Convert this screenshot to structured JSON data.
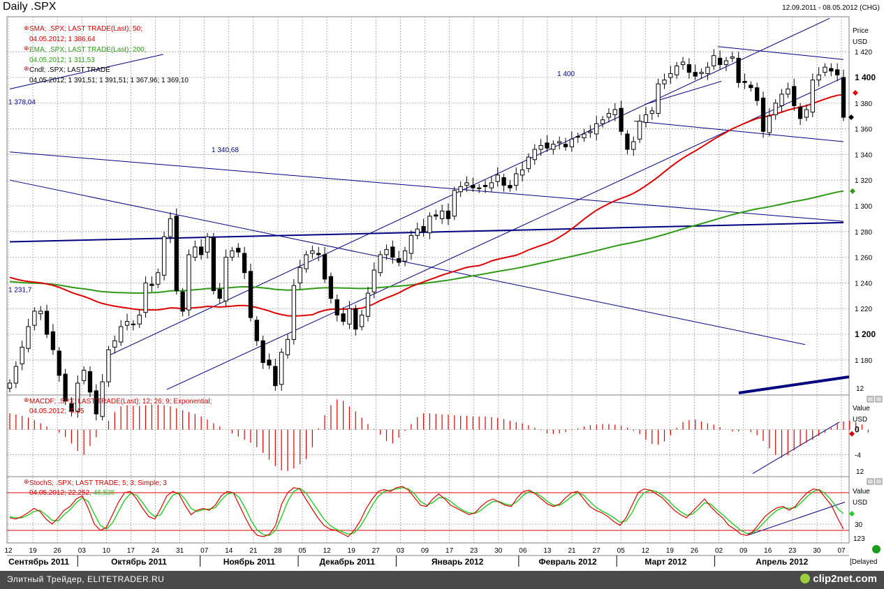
{
  "header": {
    "title": "Daily .SPX",
    "date_range": "12.09.2011 - 08.05.2012 (CHG)"
  },
  "footer": {
    "left_text": "Элитный Трейдер, ELITETRADER.RU",
    "brand": "clip2net.com",
    "delayed": "[Delayed"
  },
  "colors": {
    "grid": "#a0a0a0",
    "sma": "#dd0000",
    "ema": "#2e9a15",
    "candle": "#000000",
    "trendline": "#000080",
    "macd": "#dd0000",
    "stoch_k": "#dd0000",
    "stoch_d": "#22cc22"
  },
  "chart_data": [
    {
      "type": "candlestick",
      "title": "Daily .SPX",
      "ylabel": "Price",
      "yunit": "USD",
      "ylim": [
        1156,
        1444
      ],
      "y_ticks": [
        1420,
        1400,
        1380,
        1360,
        1340,
        1320,
        1300,
        1280,
        1260,
        1240,
        1220,
        1200,
        1180
      ],
      "y_tick_labels": [
        "1 420",
        "1 400",
        "1 380",
        "1 360",
        "1 340",
        "1 320",
        "1 300",
        "1 280",
        "1 260",
        "1 240",
        "1 220",
        "1 200",
        "1 180"
      ],
      "grid": true,
      "legend": [
        {
          "label": "SMA; .SPX; LAST TRADE(Last); 50;",
          "value": "04.05.2012; 1 386,64"
        },
        {
          "label": "EMA; .SPX; LAST TRADE(Last); 200;",
          "value": "04.05.2012; 1 311,53"
        },
        {
          "label": "Cndl; .SPX; LAST TRADE",
          "value": "04.05.2012; 1 391,51; 1 391,51; 1 367,96; 1 369,10"
        }
      ],
      "annotations": [
        {
          "text": "1 400",
          "value": 1400
        },
        {
          "text": "1 378,04",
          "value": 1378.04
        },
        {
          "text": "1 340,68",
          "value": 1340.68
        },
        {
          "text": "1 231,7",
          "value": 1231.7
        }
      ],
      "scale_mark": "12",
      "close": [
        1162,
        1175,
        1190,
        1206,
        1218,
        1218,
        1200,
        1188,
        1168,
        1148,
        1140,
        1162,
        1172,
        1155,
        1138,
        1163,
        1188,
        1195,
        1206,
        1210,
        1208,
        1215,
        1240,
        1238,
        1248,
        1276,
        1290,
        1234,
        1218,
        1262,
        1268,
        1262,
        1276,
        1234,
        1228,
        1260,
        1265,
        1264,
        1248,
        1213,
        1195,
        1178,
        1176,
        1160,
        1186,
        1196,
        1238,
        1252,
        1262,
        1265,
        1262,
        1243,
        1228,
        1215,
        1210,
        1220,
        1204,
        1215,
        1232,
        1250,
        1262,
        1266,
        1260,
        1256,
        1265,
        1277,
        1282,
        1280,
        1292,
        1292,
        1296,
        1290,
        1312,
        1315,
        1318,
        1314,
        1314,
        1315,
        1318,
        1324,
        1316,
        1314,
        1325,
        1328,
        1338,
        1344,
        1347,
        1345,
        1348,
        1350,
        1346,
        1352,
        1354,
        1356,
        1358,
        1364,
        1367,
        1372,
        1375,
        1358,
        1344,
        1350,
        1366,
        1371,
        1374,
        1395,
        1398,
        1403,
        1409,
        1412,
        1404,
        1401,
        1404,
        1408,
        1417,
        1410,
        1413,
        1416,
        1396,
        1396,
        1392,
        1382,
        1358,
        1370,
        1380,
        1387,
        1391,
        1378,
        1368,
        1375,
        1398,
        1402,
        1408,
        1405,
        1402,
        1369
      ],
      "sma50_endpoints": [
        1246,
        1386.64
      ],
      "ema200_endpoints": [
        1242,
        1311.53
      ],
      "trendlines": [
        {
          "from": {
            "date": "12.09.2011",
            "price": 1272
          },
          "to": {
            "date": "08.05.2012",
            "price": 1287
          },
          "thick": true
        },
        {
          "from": {
            "date": "12.09.2011",
            "price": 1342
          },
          "to": {
            "date": "08.05.2012",
            "price": 1288
          }
        },
        {
          "from": {
            "date": "12.09.2011",
            "price": 1320
          },
          "to": {
            "date": "27.04.2012",
            "price": 1192
          }
        },
        {
          "from": {
            "date": "12.09.2011",
            "price": 1391
          },
          "to": {
            "date": "26.10.2011",
            "price": 1418
          }
        },
        {
          "from": {
            "date": "10.10.2011",
            "price": 1183
          },
          "to": {
            "date": "04.05.2012",
            "price": 1446
          }
        },
        {
          "from": {
            "date": "27.10.2011",
            "price": 1157
          },
          "to": {
            "date": "08.05.2012",
            "price": 1400
          }
        },
        {
          "from": {
            "date": "09.03.2012",
            "price": 1366
          },
          "to": {
            "date": "08.05.2012",
            "price": 1350
          }
        },
        {
          "from": {
            "date": "02.04.2012",
            "price": 1424
          },
          "to": {
            "date": "08.05.2012",
            "price": 1414
          }
        },
        {
          "from": {
            "date": "12.03.2012",
            "price": 1379
          },
          "to": {
            "date": "03.04.2012",
            "price": 1397
          }
        }
      ]
    },
    {
      "type": "bar",
      "title": "MACDF; .SPX; LAST TRADE(Last); 12; 26; 9; Exponential;",
      "value_label": "04.05.2012; -0,45",
      "ylabel": "Value",
      "yunit": "USD",
      "ylim": [
        -7.5,
        5.3
      ],
      "y_tick_labels": [
        "0",
        "-4"
      ],
      "scale_mark": "12",
      "values": [
        2.6,
        2.4,
        2.2,
        1.9,
        1.5,
        1.0,
        0.5,
        0.0,
        -0.5,
        -1.2,
        -2.2,
        -3.4,
        -4.0,
        -2.6,
        -1.2,
        0.0,
        1.4,
        2.8,
        3.7,
        3.9,
        3.8,
        3.8,
        3.9,
        4.0,
        4.0,
        3.9,
        3.7,
        3.4,
        3.1,
        2.8,
        2.5,
        2.1,
        1.6,
        1.0,
        0.5,
        0.0,
        -0.6,
        -1.1,
        -1.6,
        -2.1,
        -2.8,
        -3.7,
        -4.8,
        -5.8,
        -6.5,
        -6.6,
        -6.2,
        -5.5,
        -4.7,
        -2.8,
        0.2,
        2.3,
        3.9,
        4.8,
        4.6,
        3.7,
        2.9,
        1.9,
        0.9,
        0.1,
        -0.8,
        -1.8,
        -2.2,
        -1.3,
        -0.2,
        0.9,
        2.0,
        2.6,
        2.6,
        2.5,
        2.4,
        2.4,
        2.3,
        2.2,
        2.2,
        2.1,
        2.1,
        2.1,
        2.0,
        1.9,
        1.7,
        1.4,
        1.2,
        1.0,
        0.7,
        0.3,
        -0.1,
        -0.6,
        -0.7,
        -0.6,
        -0.4,
        -0.1,
        0.2,
        0.5,
        0.7,
        0.8,
        0.9,
        0.9,
        0.8,
        0.6,
        0.3,
        -0.2,
        -0.7,
        -1.6,
        -2.3,
        -2.4,
        -1.9,
        -0.9,
        0.3,
        1.2,
        1.5,
        1.6,
        1.3,
        1.0,
        0.8,
        0.4,
        0.0,
        -0.3,
        -0.3,
        0.0,
        -0.4,
        -0.9,
        -1.8,
        -3.0,
        -4.0,
        -4.5,
        -4.1,
        -3.3,
        -2.6,
        -2.1,
        -1.6,
        -1.0,
        -0.5,
        0.3,
        1.0,
        1.3,
        1.4,
        1.2,
        0.8,
        -0.45
      ]
    },
    {
      "type": "line",
      "title": "StochS; .SPX; LAST TRADE; 5; 3; Simple; 3",
      "value_label": "04.05.2012; ",
      "k_value": "22,252",
      "d_value": "46,535",
      "ylabel": "Value",
      "yunit": "USD",
      "ylim": [
        0,
        100
      ],
      "y_tick_labels": [
        "30"
      ],
      "level_lines": [
        80,
        20
      ],
      "scale_mark": "123",
      "series": [
        {
          "color": "red",
          "values": [
            40,
            38,
            42,
            48,
            55,
            50,
            38,
            30,
            40,
            52,
            58,
            70,
            75,
            55,
            30,
            20,
            25,
            45,
            65,
            80,
            82,
            70,
            55,
            42,
            38,
            55,
            75,
            82,
            78,
            60,
            45,
            52,
            55,
            52,
            60,
            75,
            82,
            80,
            60,
            40,
            22,
            12,
            10,
            14,
            28,
            62,
            80,
            88,
            86,
            70,
            55,
            40,
            28,
            22,
            20,
            15,
            10,
            20,
            35,
            55,
            70,
            82,
            85,
            82,
            88,
            90,
            84,
            72,
            60,
            58,
            70,
            78,
            70,
            60,
            55,
            50,
            45,
            48,
            58,
            66,
            70,
            65,
            60,
            58,
            72,
            82,
            84,
            78,
            70,
            62,
            58,
            62,
            72,
            80,
            82,
            70,
            58,
            52,
            48,
            42,
            34,
            28,
            40,
            60,
            80,
            86,
            84,
            78,
            72,
            62,
            52,
            45,
            40,
            50,
            60,
            70,
            58,
            48,
            40,
            28,
            22,
            14,
            12,
            18,
            30,
            42,
            50,
            56,
            58,
            52,
            58,
            70,
            80,
            86,
            84,
            72,
            60,
            40,
            22
          ]
        },
        {
          "color": "green",
          "values": [
            42,
            40,
            40,
            44,
            50,
            52,
            45,
            36,
            35,
            45,
            53,
            64,
            72,
            66,
            46,
            28,
            22,
            32,
            50,
            68,
            79,
            76,
            64,
            50,
            42,
            45,
            62,
            76,
            80,
            70,
            55,
            50,
            53,
            54,
            56,
            68,
            78,
            80,
            72,
            55,
            35,
            20,
            13,
            12,
            20,
            42,
            66,
            82,
            87,
            80,
            66,
            52,
            38,
            28,
            22,
            18,
            14,
            16,
            26,
            42,
            60,
            74,
            82,
            84,
            86,
            88,
            86,
            78,
            66,
            60,
            64,
            72,
            72,
            66,
            58,
            52,
            48,
            47,
            52,
            60,
            66,
            66,
            62,
            60,
            66,
            76,
            82,
            80,
            74,
            66,
            60,
            60,
            66,
            74,
            80,
            76,
            66,
            57,
            51,
            46,
            40,
            33,
            35,
            48,
            68,
            80,
            84,
            82,
            76,
            68,
            58,
            50,
            44,
            46,
            54,
            64,
            62,
            53,
            45,
            36,
            28,
            20,
            15,
            16,
            24,
            34,
            44,
            52,
            56,
            55,
            56,
            64,
            74,
            82,
            85,
            78,
            68,
            55,
            46.5
          ]
        }
      ]
    }
  ],
  "x_axis": {
    "day_ticks": [
      "12",
      "19",
      "26",
      "03",
      "10",
      "17",
      "24",
      "31",
      "07",
      "14",
      "21",
      "28",
      "05",
      "12",
      "19",
      "27",
      "03",
      "09",
      "17",
      "23",
      "30",
      "06",
      "13",
      "21",
      "27",
      "05",
      "12",
      "19",
      "26",
      "02",
      "09",
      "16",
      "23",
      "30",
      "07"
    ],
    "months": [
      "Сентябрь 2011",
      "Октябрь 2011",
      "Ноябрь 2011",
      "Декабрь 2011",
      "Январь 2012",
      "Февраль 2012",
      "Март 2012",
      "Апрель 2012"
    ],
    "month_positions": [
      0,
      3,
      8,
      12,
      16,
      21,
      25,
      29
    ]
  }
}
